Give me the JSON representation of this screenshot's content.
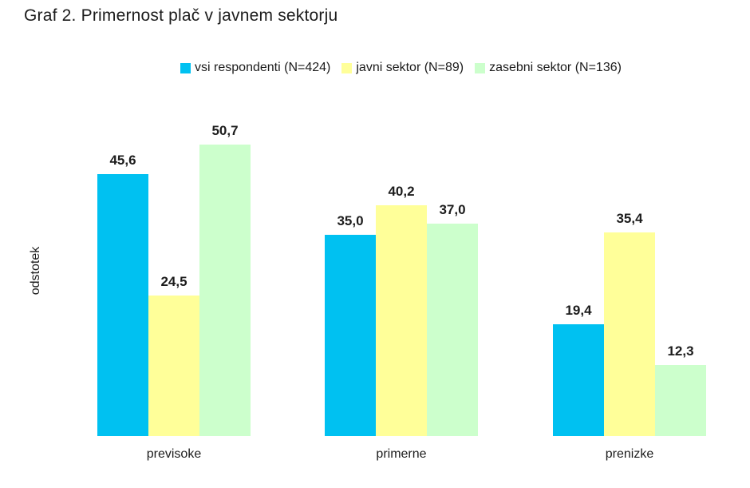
{
  "title": "Graf 2. Primernost plač v javnem sektorju",
  "chart_data": {
    "type": "bar",
    "title": "Graf 2. Primernost plač v javnem sektorju",
    "categories": [
      "previsoke",
      "primerne",
      "prenizke"
    ],
    "series": [
      {
        "name": "vsi respondenti (N=424)",
        "color": "#00c1f1",
        "values": [
          45.6,
          35.0,
          19.4
        ]
      },
      {
        "name": "javni sektor (N=89)",
        "color": "#ffff99",
        "values": [
          24.5,
          40.2,
          35.4
        ]
      },
      {
        "name": "zasebni sektor (N=136)",
        "color": "#ccffcc",
        "values": [
          50.7,
          37.0,
          12.3
        ]
      }
    ],
    "value_labels": [
      [
        "45,6",
        "35,0",
        "19,4"
      ],
      [
        "24,5",
        "40,2",
        "35,4"
      ],
      [
        "50,7",
        "37,0",
        "12,3"
      ]
    ],
    "xlabel": "",
    "ylabel": "odstotek",
    "ylim": [
      0,
      55
    ],
    "grid": false,
    "axis_lines": false,
    "legend_position": "top-center",
    "decimal_separator": ",",
    "background_color": "#ffffff",
    "text_color": "#1c1c1c"
  }
}
